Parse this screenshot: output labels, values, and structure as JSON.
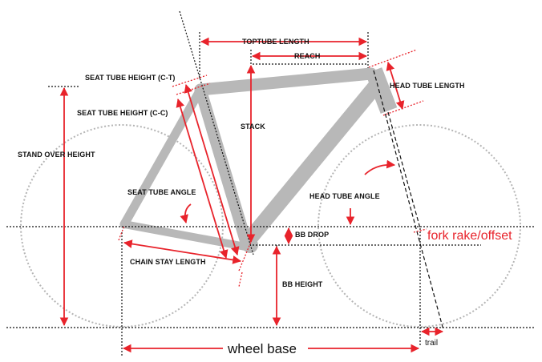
{
  "labels": {
    "toptube_length": "TOPTUBE LENGTH",
    "reach": "REACH",
    "seat_tube_height_ct": "SEAT TUBE HEIGHT (C-T)",
    "seat_tube_height_cc": "SEAT TUBE HEIGHT (C-C)",
    "head_tube_length": "HEAD TUBE LENGTH",
    "stack": "STACK",
    "stand_over_height": "STAND OVER HEIGHT",
    "seat_tube_angle": "SEAT TUBE ANGLE",
    "head_tube_angle": "HEAD TUBE ANGLE",
    "bb_drop": "BB DROP",
    "fork_rake": "fork rake/offset",
    "chain_stay_length": "CHAIN STAY LENGTH",
    "bb_height": "BB HEIGHT",
    "wheel_base": "wheel base",
    "trail": "trail"
  },
  "colors": {
    "dimension": "#e8232b",
    "frame": "#b8b8b8",
    "wheel": "#b5b5b5",
    "guide": "#111111"
  }
}
